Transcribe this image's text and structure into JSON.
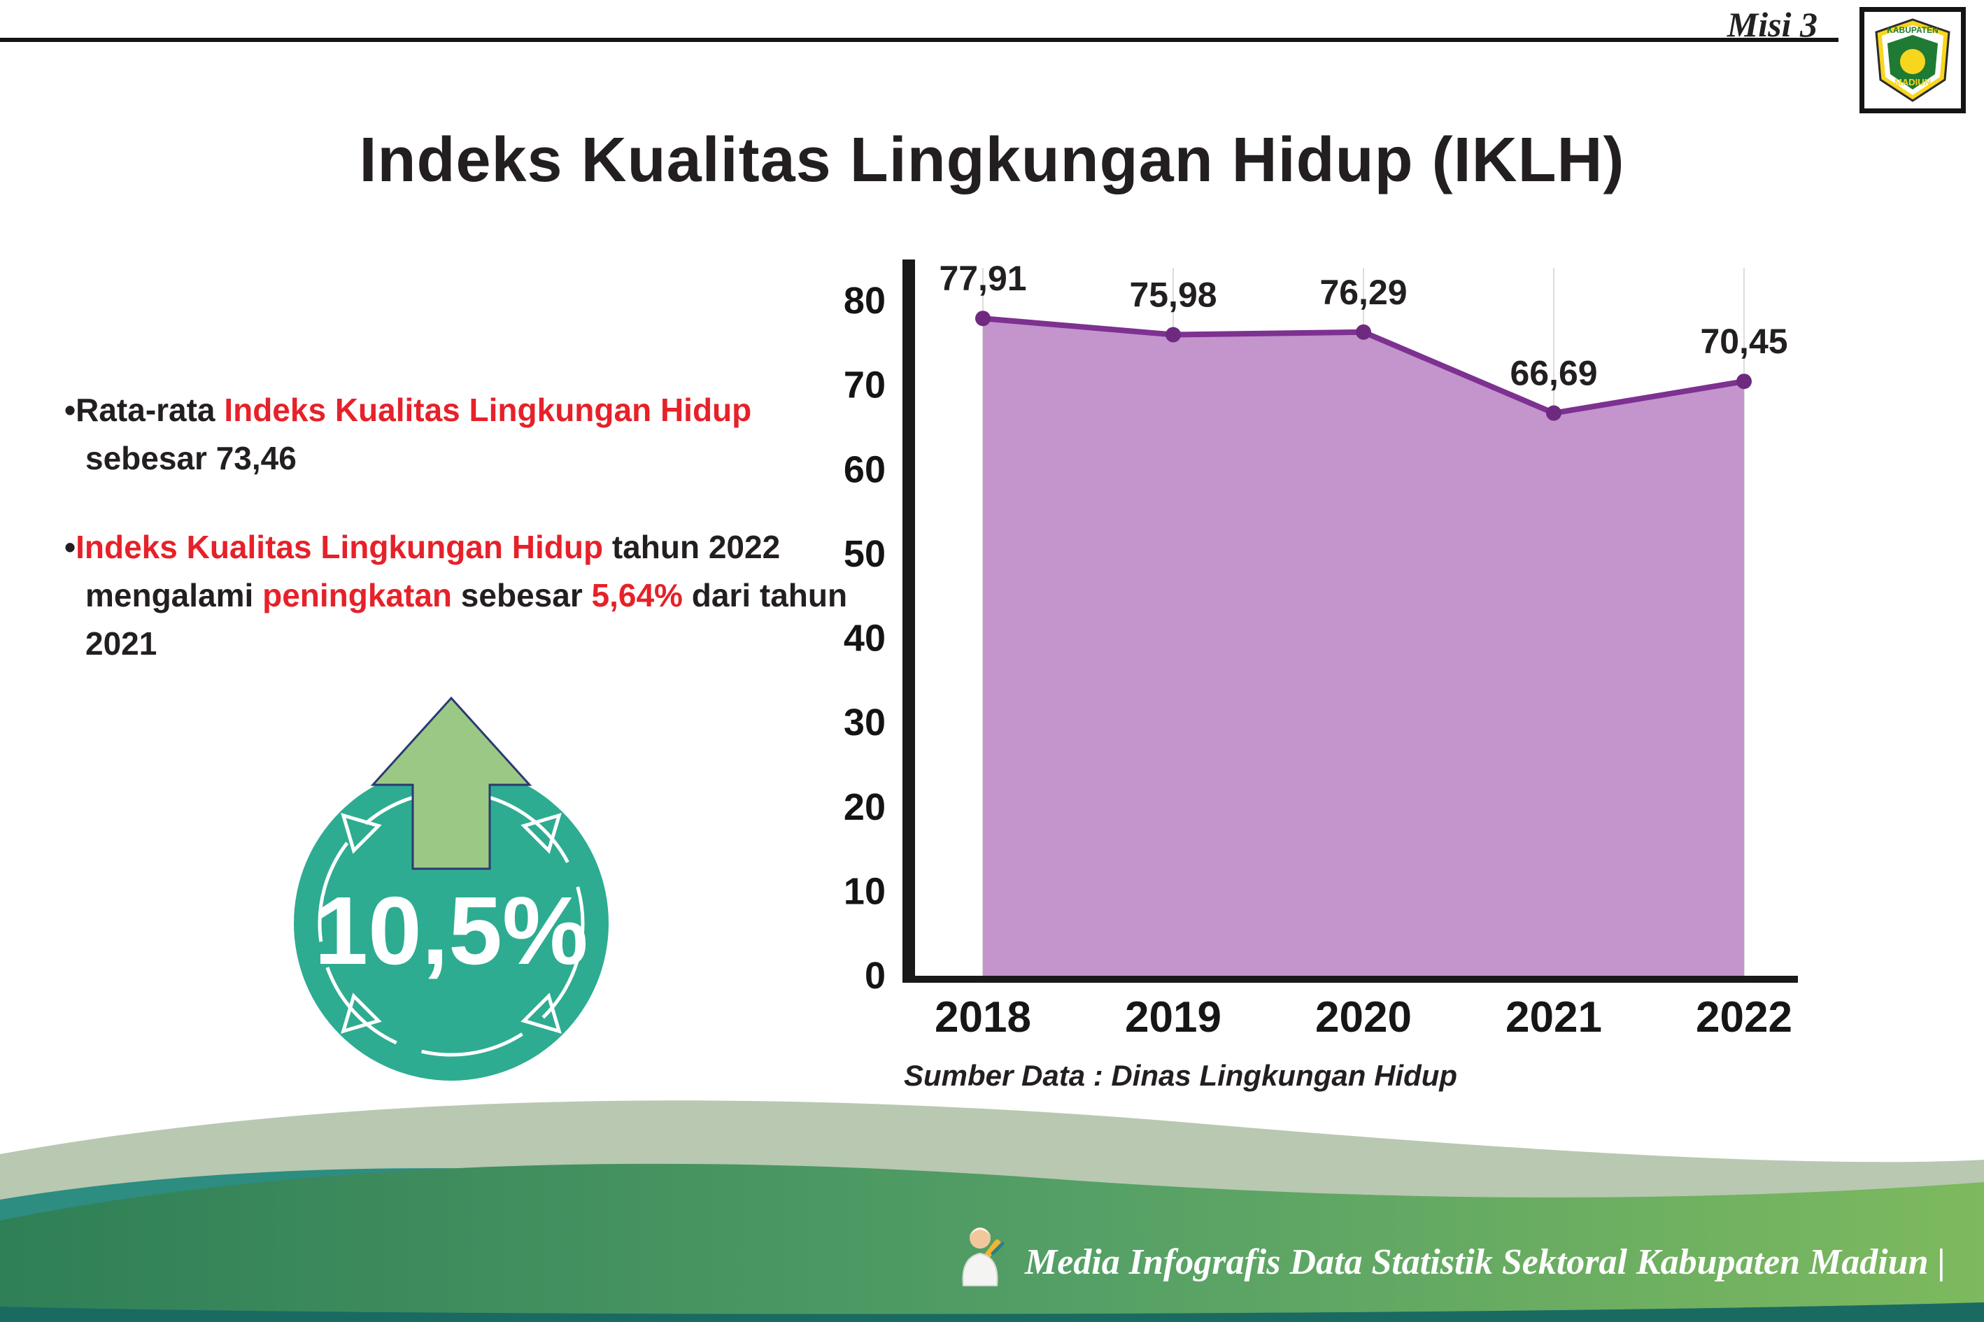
{
  "header": {
    "misi_label": "Misi 3",
    "title": "Indeks Kualitas Lingkungan Hidup (IKLH)",
    "logo": {
      "top_text": "KABUPATEN",
      "bottom_text": "MADIUN"
    }
  },
  "bullets": {
    "marker": "•",
    "b1": [
      "Rata-rata ",
      "Indeks Kualitas Lingkungan Hidup",
      " sebesar 73,46"
    ],
    "b2": [
      "Indeks Kualitas Lingkungan Hidup",
      " tahun 2022 mengalami ",
      "peningkatan",
      " sebesar ",
      "5,64%",
      " dari tahun 2021"
    ]
  },
  "badge": {
    "value": "10,5%",
    "circle_color": "#2dac91",
    "arrow_color": "#9bc985"
  },
  "chart_data": {
    "type": "area",
    "title": "Indeks Kualitas Lingkungan Hidup (IKLH)",
    "categories": [
      "2018",
      "2019",
      "2020",
      "2021",
      "2022"
    ],
    "values": [
      77.91,
      75.98,
      76.29,
      66.69,
      70.45
    ],
    "point_labels": [
      "77,91",
      "75,98",
      "76,29",
      "66,69",
      "70,45"
    ],
    "ylim": [
      0,
      80
    ],
    "yticks": [
      0,
      10,
      20,
      30,
      40,
      50,
      60,
      70,
      80
    ],
    "grid": "vertical",
    "legend": "none",
    "line_color": "#7d3190",
    "fill_color": "#c494cd",
    "dot_color": "#6d2a7f",
    "source": "Sumber Data : Dinas Lingkungan Hidup"
  },
  "footer": {
    "text": "Media Infografis Data Statistik Sektoral Kabupaten Madiun |"
  }
}
